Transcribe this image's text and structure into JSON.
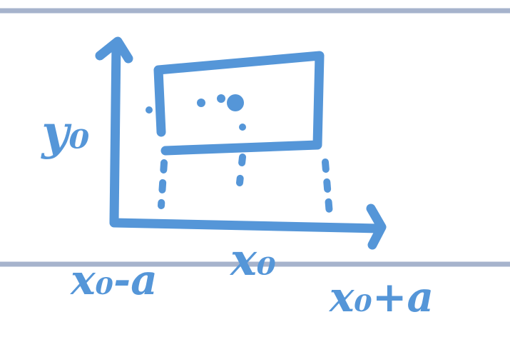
{
  "labels": {
    "y_label": "y₀",
    "x_left": "x₀-a",
    "x_center": "x₀",
    "x_right": "x₀+a"
  }
}
